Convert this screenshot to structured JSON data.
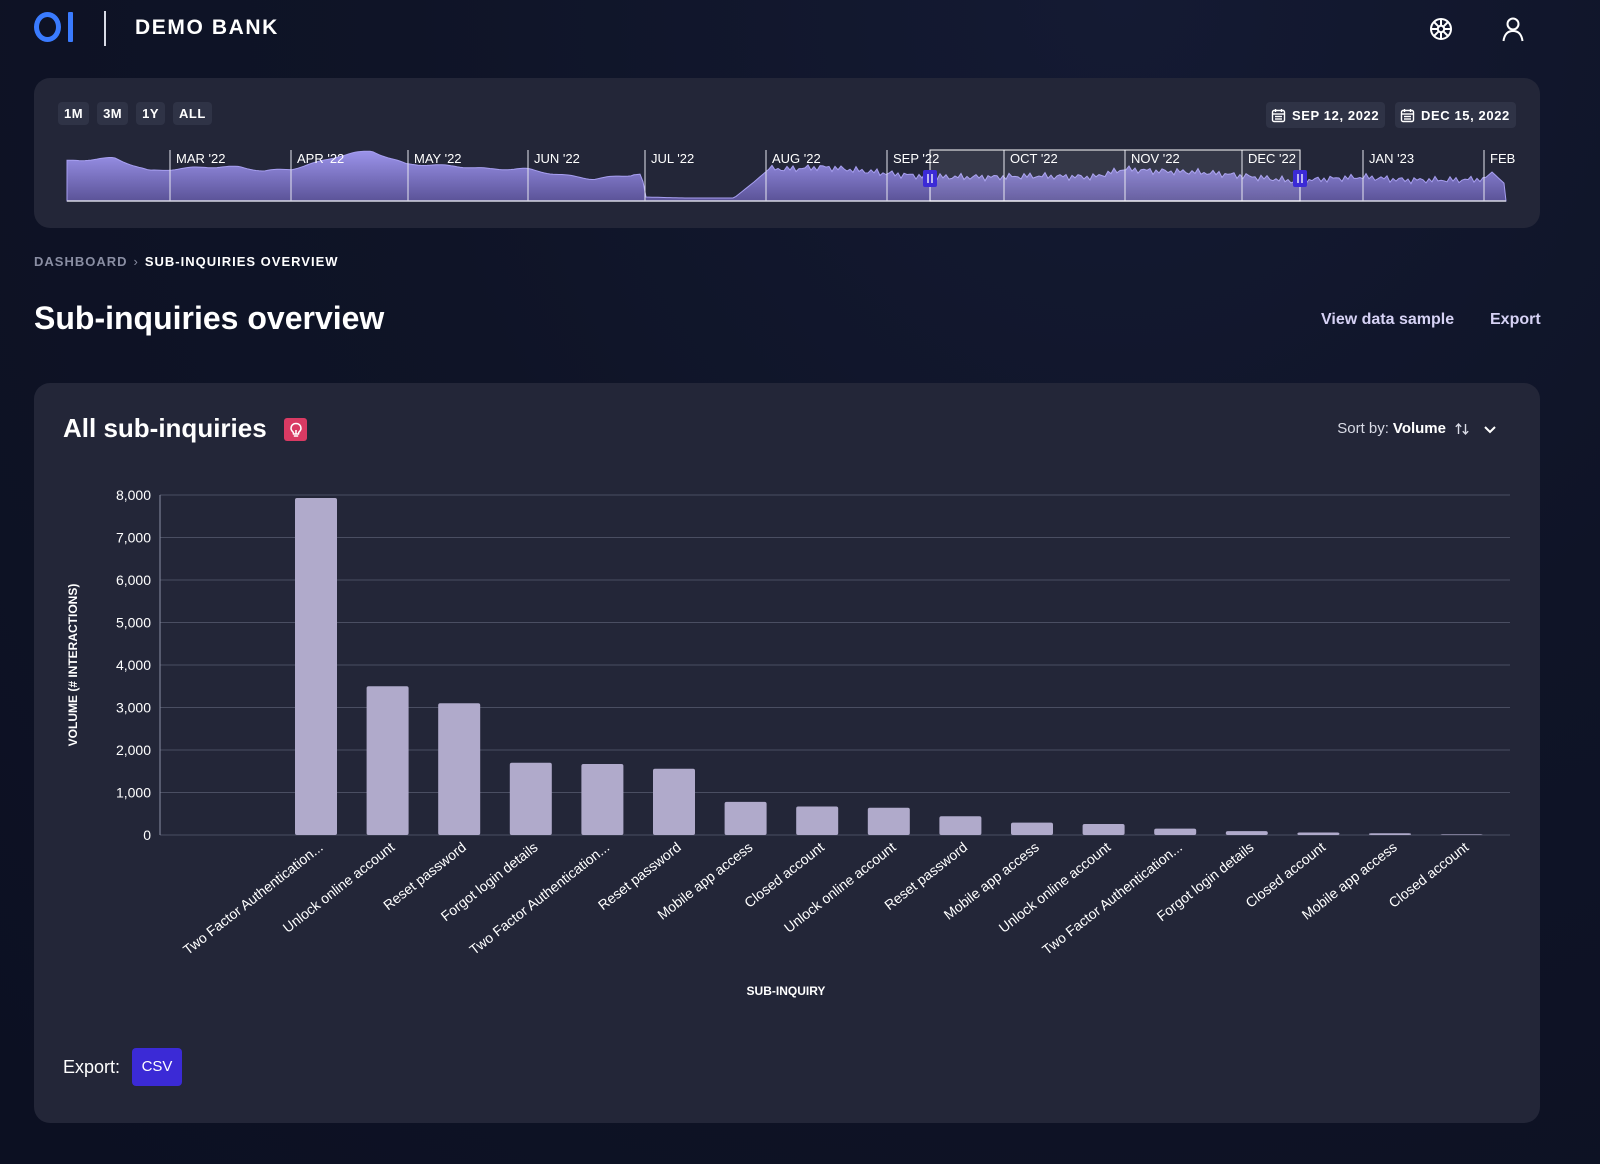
{
  "header": {
    "brand": "DEMO BANK",
    "logo_icon": "oi-logo",
    "icons": [
      "settings-wheel-icon",
      "user-icon"
    ]
  },
  "timeline": {
    "range_buttons": [
      "1M",
      "3M",
      "1Y",
      "ALL"
    ],
    "start_date": "SEP 12, 2022",
    "end_date": "DEC 15, 2022",
    "months": [
      "MAR '22",
      "APR '22",
      "MAY '22",
      "JUN '22",
      "JUL '22",
      "AUG '22",
      "SEP '22",
      "OCT '22",
      "NOV '22",
      "DEC '22",
      "JAN '23",
      "FEB"
    ]
  },
  "breadcrumb": {
    "parent": "DASHBOARD",
    "current": "SUB-INQUIRIES OVERVIEW"
  },
  "page": {
    "title": "Sub-inquiries overview",
    "view_sample": "View data sample",
    "export": "Export"
  },
  "card": {
    "title": "All sub-inquiries",
    "sort_label": "Sort by:",
    "sort_value": "Volume",
    "export_label": "Export:",
    "csv_label": "CSV"
  },
  "chart_data": {
    "type": "bar",
    "xlabel": "SUB-INQUIRY",
    "ylabel": "VOLUME (# INTERACTIONS)",
    "ylim": [
      0,
      8000
    ],
    "yticks": [
      0,
      1000,
      2000,
      3000,
      4000,
      5000,
      6000,
      7000,
      8000
    ],
    "ytick_labels": [
      "0",
      "1,000",
      "2,000",
      "3,000",
      "4,000",
      "5,000",
      "6,000",
      "7,000",
      "8,000"
    ],
    "grid": true,
    "bar_color": "#b0aacb",
    "categories": [
      "Two Factor Authentication...",
      "Unlock online account",
      "Reset password",
      "Forgot login details",
      "Two Factor Authentication...",
      "Reset password",
      "Mobile app access",
      "Closed account",
      "Unlock online account",
      "Reset password",
      "Mobile app access",
      "Unlock online account",
      "Two Factor Authentication...",
      "Forgot login details",
      "Closed account",
      "Mobile app access",
      "Closed account"
    ],
    "values": [
      7930,
      3500,
      3100,
      1700,
      1670,
      1560,
      780,
      670,
      640,
      440,
      290,
      260,
      150,
      90,
      60,
      40,
      15
    ]
  },
  "colors": {
    "accent": "#3b2ad6",
    "logo": "#3a7bff",
    "card_bg": "#232638",
    "page_bg": "#0f1427",
    "bulb": "#d93a63",
    "timeline_fill": "#7d73d4"
  }
}
